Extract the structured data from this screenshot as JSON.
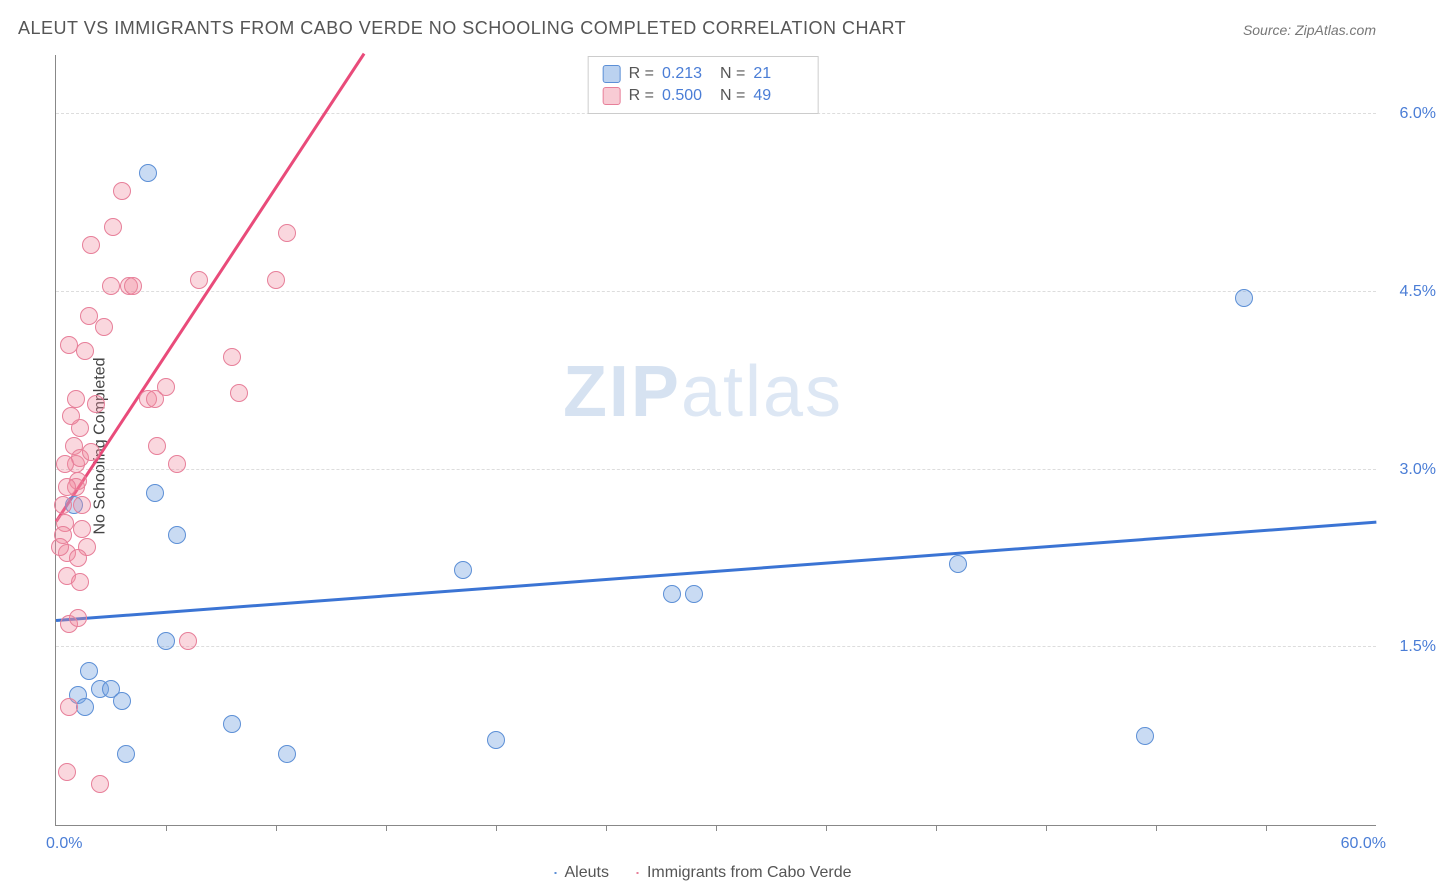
{
  "title": "ALEUT VS IMMIGRANTS FROM CABO VERDE NO SCHOOLING COMPLETED CORRELATION CHART",
  "source": "Source: ZipAtlas.com",
  "ylabel": "No Schooling Completed",
  "watermark_zip": "ZIP",
  "watermark_atlas": "atlas",
  "chart": {
    "type": "scatter",
    "xlim": [
      0,
      60
    ],
    "ylim": [
      0,
      6.5
    ],
    "x_tick_step": 5,
    "y_ticks": [
      1.5,
      3.0,
      4.5,
      6.0
    ],
    "y_tick_labels": [
      "1.5%",
      "3.0%",
      "4.5%",
      "6.0%"
    ],
    "x_min_label": "0.0%",
    "x_max_label": "60.0%",
    "grid_color": "#dddddd",
    "plot_bg": "#ffffff",
    "series": [
      {
        "name": "Aleuts",
        "color_fill": "rgba(120,165,225,0.4)",
        "color_stroke": "#5c8fd6",
        "trend_color": "#3b74d4",
        "R": "0.213",
        "N": "21",
        "trend": {
          "x1": 0,
          "y1": 1.72,
          "x2": 60,
          "y2": 2.55
        },
        "points": [
          [
            0.8,
            2.7
          ],
          [
            4.2,
            5.5
          ],
          [
            1.0,
            1.1
          ],
          [
            2.0,
            1.15
          ],
          [
            2.5,
            1.15
          ],
          [
            3.0,
            1.05
          ],
          [
            5.0,
            1.55
          ],
          [
            4.5,
            2.8
          ],
          [
            5.5,
            2.45
          ],
          [
            8.0,
            0.85
          ],
          [
            10.5,
            0.6
          ],
          [
            3.2,
            0.6
          ],
          [
            1.3,
            1.0
          ],
          [
            18.5,
            2.15
          ],
          [
            20.0,
            0.72
          ],
          [
            28.0,
            1.95
          ],
          [
            29.0,
            1.95
          ],
          [
            41.0,
            2.2
          ],
          [
            49.5,
            0.75
          ],
          [
            54.0,
            4.45
          ],
          [
            1.5,
            1.3
          ]
        ]
      },
      {
        "name": "Immigrants from Cabo Verde",
        "color_fill": "rgba(240,140,160,0.35)",
        "color_stroke": "#e77f99",
        "trend_color": "#e94b7a",
        "R": "0.500",
        "N": "49",
        "trend": {
          "x1": 0,
          "y1": 2.55,
          "x2": 14,
          "y2": 6.5
        },
        "points": [
          [
            0.4,
            2.55
          ],
          [
            0.5,
            2.3
          ],
          [
            0.5,
            2.1
          ],
          [
            0.6,
            1.7
          ],
          [
            0.6,
            1.0
          ],
          [
            0.5,
            0.45
          ],
          [
            0.8,
            3.2
          ],
          [
            0.9,
            3.05
          ],
          [
            1.0,
            2.9
          ],
          [
            1.1,
            3.35
          ],
          [
            1.1,
            3.1
          ],
          [
            1.2,
            2.7
          ],
          [
            1.2,
            2.5
          ],
          [
            1.1,
            2.05
          ],
          [
            1.0,
            1.75
          ],
          [
            1.3,
            4.0
          ],
          [
            1.5,
            4.3
          ],
          [
            1.6,
            4.9
          ],
          [
            2.5,
            4.55
          ],
          [
            2.6,
            5.05
          ],
          [
            3.0,
            5.35
          ],
          [
            3.3,
            4.55
          ],
          [
            3.5,
            4.55
          ],
          [
            4.2,
            3.6
          ],
          [
            4.5,
            3.6
          ],
          [
            4.6,
            3.2
          ],
          [
            5.0,
            3.7
          ],
          [
            5.5,
            3.05
          ],
          [
            6.5,
            4.6
          ],
          [
            8.0,
            3.95
          ],
          [
            8.3,
            3.65
          ],
          [
            10.0,
            4.6
          ],
          [
            10.5,
            5.0
          ],
          [
            6.0,
            1.55
          ],
          [
            0.3,
            2.7
          ],
          [
            0.3,
            2.45
          ],
          [
            0.9,
            2.85
          ],
          [
            0.7,
            3.45
          ],
          [
            1.4,
            2.35
          ],
          [
            1.6,
            3.15
          ],
          [
            2.0,
            0.35
          ],
          [
            2.2,
            4.2
          ],
          [
            1.8,
            3.55
          ],
          [
            0.4,
            3.05
          ],
          [
            0.2,
            2.35
          ],
          [
            0.5,
            2.85
          ],
          [
            0.9,
            3.6
          ],
          [
            0.6,
            4.05
          ],
          [
            1.0,
            2.25
          ]
        ]
      }
    ]
  },
  "legend_top": {
    "rows": [
      {
        "sw": "blue",
        "R_label": "R =",
        "R": "0.213",
        "N_label": "N =",
        "N": "21"
      },
      {
        "sw": "pink",
        "R_label": "R =",
        "R": "0.500",
        "N_label": "N =",
        "N": "49"
      }
    ]
  },
  "legend_bottom": {
    "items": [
      {
        "sw": "blue",
        "label": "Aleuts"
      },
      {
        "sw": "pink",
        "label": "Immigrants from Cabo Verde"
      }
    ]
  }
}
